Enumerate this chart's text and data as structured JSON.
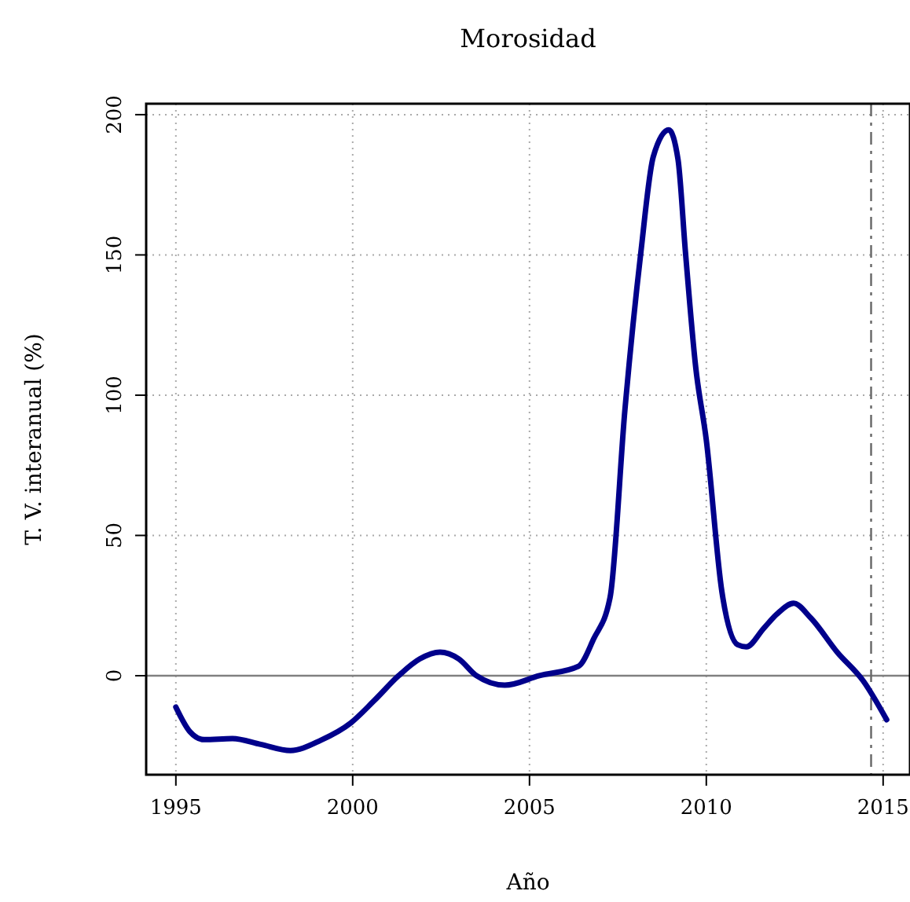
{
  "chart_data": {
    "type": "line",
    "title": "Morosidad",
    "xlabel": "Año",
    "ylabel": "T. V. interanual (%)",
    "xlim": [
      1994.16,
      2015.76
    ],
    "ylim": [
      -35.3,
      203.9
    ],
    "xticks": [
      1995,
      2000,
      2005,
      2010,
      2015
    ],
    "yticks": [
      0,
      50,
      100,
      150,
      200
    ],
    "grid": true,
    "marker": "none",
    "line_style": "solid",
    "ref_lines": [
      {
        "axis": "y",
        "value": 0,
        "color": "#808080",
        "line_style": "solid"
      },
      {
        "axis": "x",
        "value": 2014.66,
        "color": "#666666",
        "line_style": "dashed"
      }
    ],
    "series": [
      {
        "color": "#00008b",
        "x": [
          1995.0,
          1995.4,
          1995.8,
          1996.6,
          1997.4,
          1998.24,
          1999.1,
          1999.95,
          2000.6,
          2001.3,
          2001.9,
          2002.47,
          2003.0,
          2003.5,
          2004.3,
          2005.28,
          2006.39,
          2006.81,
          2007.28,
          2007.7,
          2008.15,
          2008.5,
          2008.94,
          2009.2,
          2009.41,
          2009.7,
          2010.0,
          2010.44,
          2010.89,
          2011.13,
          2011.63,
          2012.0,
          2012.47,
          2012.96,
          2013.7,
          2014.44,
          2015.1
        ],
        "values": [
          -11.2,
          -20,
          -22.8,
          -22.4,
          -24.5,
          -26.7,
          -23,
          -16.8,
          -9,
          0,
          6,
          8.4,
          6,
          0,
          -3.4,
          0,
          3.4,
          13,
          28,
          95,
          151,
          185,
          194.6,
          184,
          151,
          110,
          84,
          30,
          11,
          10.3,
          17,
          22,
          25.8,
          20.5,
          8.4,
          -1.9,
          -15.7
        ]
      }
    ]
  }
}
